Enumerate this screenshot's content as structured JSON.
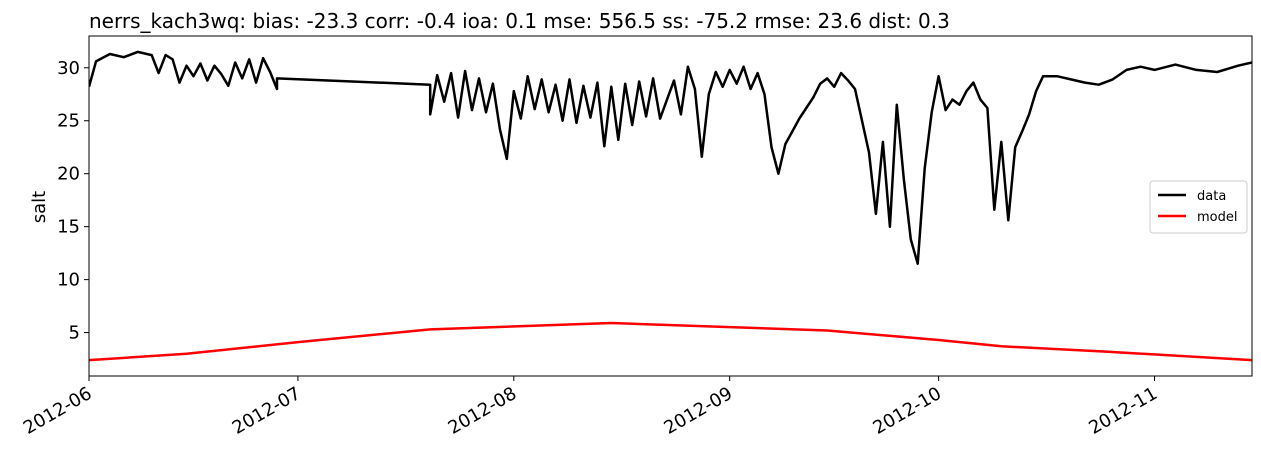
{
  "chart_data": {
    "type": "line",
    "title": "nerrs_kach3wq: bias: -23.3  corr: -0.4  ioa: 0.1  mse: 556.5  ss: -75.2  rmse: 23.6  dist: 0.3",
    "xlabel": "",
    "ylabel": "salt",
    "xlim": [
      "2012-06-01",
      "2012-11-15"
    ],
    "ylim": [
      0.9,
      33.0
    ],
    "x_ticks": [
      "2012-06",
      "2012-07",
      "2012-08",
      "2012-09",
      "2012-10",
      "2012-11"
    ],
    "x_tick_dates": [
      "2012-06-01",
      "2012-07-01",
      "2012-08-01",
      "2012-09-01",
      "2012-10-01",
      "2012-11-01"
    ],
    "y_ticks": [
      5,
      10,
      15,
      20,
      25,
      30
    ],
    "grid": false,
    "legend_position": "right",
    "series": [
      {
        "name": "data",
        "color": "#000000",
        "points": [
          [
            "2012-06-01",
            28.2
          ],
          [
            "2012-06-02",
            30.6
          ],
          [
            "2012-06-04",
            31.3
          ],
          [
            "2012-06-06",
            31.0
          ],
          [
            "2012-06-08",
            31.5
          ],
          [
            "2012-06-10",
            31.2
          ],
          [
            "2012-06-11",
            29.5
          ],
          [
            "2012-06-12",
            31.2
          ],
          [
            "2012-06-13",
            30.8
          ],
          [
            "2012-06-14",
            28.6
          ],
          [
            "2012-06-15",
            30.2
          ],
          [
            "2012-06-16",
            29.2
          ],
          [
            "2012-06-17",
            30.4
          ],
          [
            "2012-06-18",
            28.8
          ],
          [
            "2012-06-19",
            30.2
          ],
          [
            "2012-06-20",
            29.4
          ],
          [
            "2012-06-21",
            28.3
          ],
          [
            "2012-06-22",
            30.5
          ],
          [
            "2012-06-23",
            29.0
          ],
          [
            "2012-06-24",
            30.8
          ],
          [
            "2012-06-25",
            28.6
          ],
          [
            "2012-06-26",
            30.9
          ],
          [
            "2012-06-27",
            29.6
          ],
          [
            "2012-06-28",
            28.0
          ],
          [
            "2012-06-28",
            29.0
          ],
          [
            "2012-07-20",
            28.4
          ],
          [
            "2012-07-20",
            25.6
          ],
          [
            "2012-07-21",
            29.3
          ],
          [
            "2012-07-22",
            26.8
          ],
          [
            "2012-07-23",
            29.5
          ],
          [
            "2012-07-24",
            25.3
          ],
          [
            "2012-07-25",
            29.7
          ],
          [
            "2012-07-26",
            26.0
          ],
          [
            "2012-07-27",
            29.0
          ],
          [
            "2012-07-28",
            25.8
          ],
          [
            "2012-07-29",
            28.5
          ],
          [
            "2012-07-30",
            24.2
          ],
          [
            "2012-07-31",
            21.4
          ],
          [
            "2012-08-01",
            27.8
          ],
          [
            "2012-08-02",
            25.2
          ],
          [
            "2012-08-03",
            29.2
          ],
          [
            "2012-08-04",
            26.1
          ],
          [
            "2012-08-05",
            28.9
          ],
          [
            "2012-08-06",
            25.8
          ],
          [
            "2012-08-07",
            28.4
          ],
          [
            "2012-08-08",
            25.0
          ],
          [
            "2012-08-09",
            28.9
          ],
          [
            "2012-08-10",
            24.8
          ],
          [
            "2012-08-11",
            28.3
          ],
          [
            "2012-08-12",
            25.3
          ],
          [
            "2012-08-13",
            28.6
          ],
          [
            "2012-08-14",
            22.6
          ],
          [
            "2012-08-15",
            28.2
          ],
          [
            "2012-08-16",
            23.2
          ],
          [
            "2012-08-17",
            28.5
          ],
          [
            "2012-08-18",
            24.6
          ],
          [
            "2012-08-19",
            28.7
          ],
          [
            "2012-08-20",
            25.4
          ],
          [
            "2012-08-21",
            29.0
          ],
          [
            "2012-08-22",
            25.2
          ],
          [
            "2012-08-23",
            27.0
          ],
          [
            "2012-08-24",
            28.8
          ],
          [
            "2012-08-25",
            25.6
          ],
          [
            "2012-08-26",
            30.1
          ],
          [
            "2012-08-27",
            28.0
          ],
          [
            "2012-08-28",
            21.6
          ],
          [
            "2012-08-29",
            27.5
          ],
          [
            "2012-08-30",
            29.6
          ],
          [
            "2012-08-31",
            28.2
          ],
          [
            "2012-09-01",
            29.8
          ],
          [
            "2012-09-02",
            28.5
          ],
          [
            "2012-09-03",
            30.1
          ],
          [
            "2012-09-04",
            28.0
          ],
          [
            "2012-09-05",
            29.5
          ],
          [
            "2012-09-06",
            27.5
          ],
          [
            "2012-09-07",
            22.5
          ],
          [
            "2012-09-08",
            20.0
          ],
          [
            "2012-09-09",
            22.8
          ],
          [
            "2012-09-10",
            24.0
          ],
          [
            "2012-09-11",
            25.2
          ],
          [
            "2012-09-12",
            26.2
          ],
          [
            "2012-09-13",
            27.2
          ],
          [
            "2012-09-14",
            28.5
          ],
          [
            "2012-09-15",
            29.0
          ],
          [
            "2012-09-16",
            28.2
          ],
          [
            "2012-09-17",
            29.5
          ],
          [
            "2012-09-18",
            28.8
          ],
          [
            "2012-09-19",
            28.0
          ],
          [
            "2012-09-20",
            25.0
          ],
          [
            "2012-09-21",
            22.0
          ],
          [
            "2012-09-22",
            16.2
          ],
          [
            "2012-09-23",
            23.0
          ],
          [
            "2012-09-24",
            15.0
          ],
          [
            "2012-09-25",
            26.5
          ],
          [
            "2012-09-26",
            19.5
          ],
          [
            "2012-09-27",
            13.8
          ],
          [
            "2012-09-28",
            11.5
          ],
          [
            "2012-09-29",
            20.5
          ],
          [
            "2012-09-30",
            25.8
          ],
          [
            "2012-10-01",
            29.2
          ],
          [
            "2012-10-02",
            26.0
          ],
          [
            "2012-10-03",
            27.0
          ],
          [
            "2012-10-04",
            26.5
          ],
          [
            "2012-10-05",
            27.8
          ],
          [
            "2012-10-06",
            28.6
          ],
          [
            "2012-10-07",
            27.0
          ],
          [
            "2012-10-08",
            26.2
          ],
          [
            "2012-10-09",
            16.6
          ],
          [
            "2012-10-10",
            23.0
          ],
          [
            "2012-10-11",
            15.6
          ],
          [
            "2012-10-12",
            22.5
          ],
          [
            "2012-10-13",
            24.0
          ],
          [
            "2012-10-14",
            25.6
          ],
          [
            "2012-10-15",
            27.8
          ],
          [
            "2012-10-16",
            29.2
          ],
          [
            "2012-10-18",
            29.2
          ],
          [
            "2012-10-20",
            28.9
          ],
          [
            "2012-10-22",
            28.6
          ],
          [
            "2012-10-24",
            28.4
          ],
          [
            "2012-10-26",
            28.9
          ],
          [
            "2012-10-28",
            29.8
          ],
          [
            "2012-10-30",
            30.1
          ],
          [
            "2012-11-01",
            29.8
          ],
          [
            "2012-11-04",
            30.3
          ],
          [
            "2012-11-07",
            29.8
          ],
          [
            "2012-11-10",
            29.6
          ],
          [
            "2012-11-13",
            30.2
          ],
          [
            "2012-11-15",
            30.5
          ]
        ]
      },
      {
        "name": "model",
        "color": "#ff0000",
        "points": [
          [
            "2012-06-01",
            2.4
          ],
          [
            "2012-06-15",
            3.0
          ],
          [
            "2012-07-01",
            4.1
          ],
          [
            "2012-07-20",
            5.3
          ],
          [
            "2012-08-15",
            5.9
          ],
          [
            "2012-09-15",
            5.2
          ],
          [
            "2012-10-01",
            4.3
          ],
          [
            "2012-10-10",
            3.7
          ],
          [
            "2012-10-25",
            3.2
          ],
          [
            "2012-11-15",
            2.4
          ]
        ]
      }
    ]
  }
}
